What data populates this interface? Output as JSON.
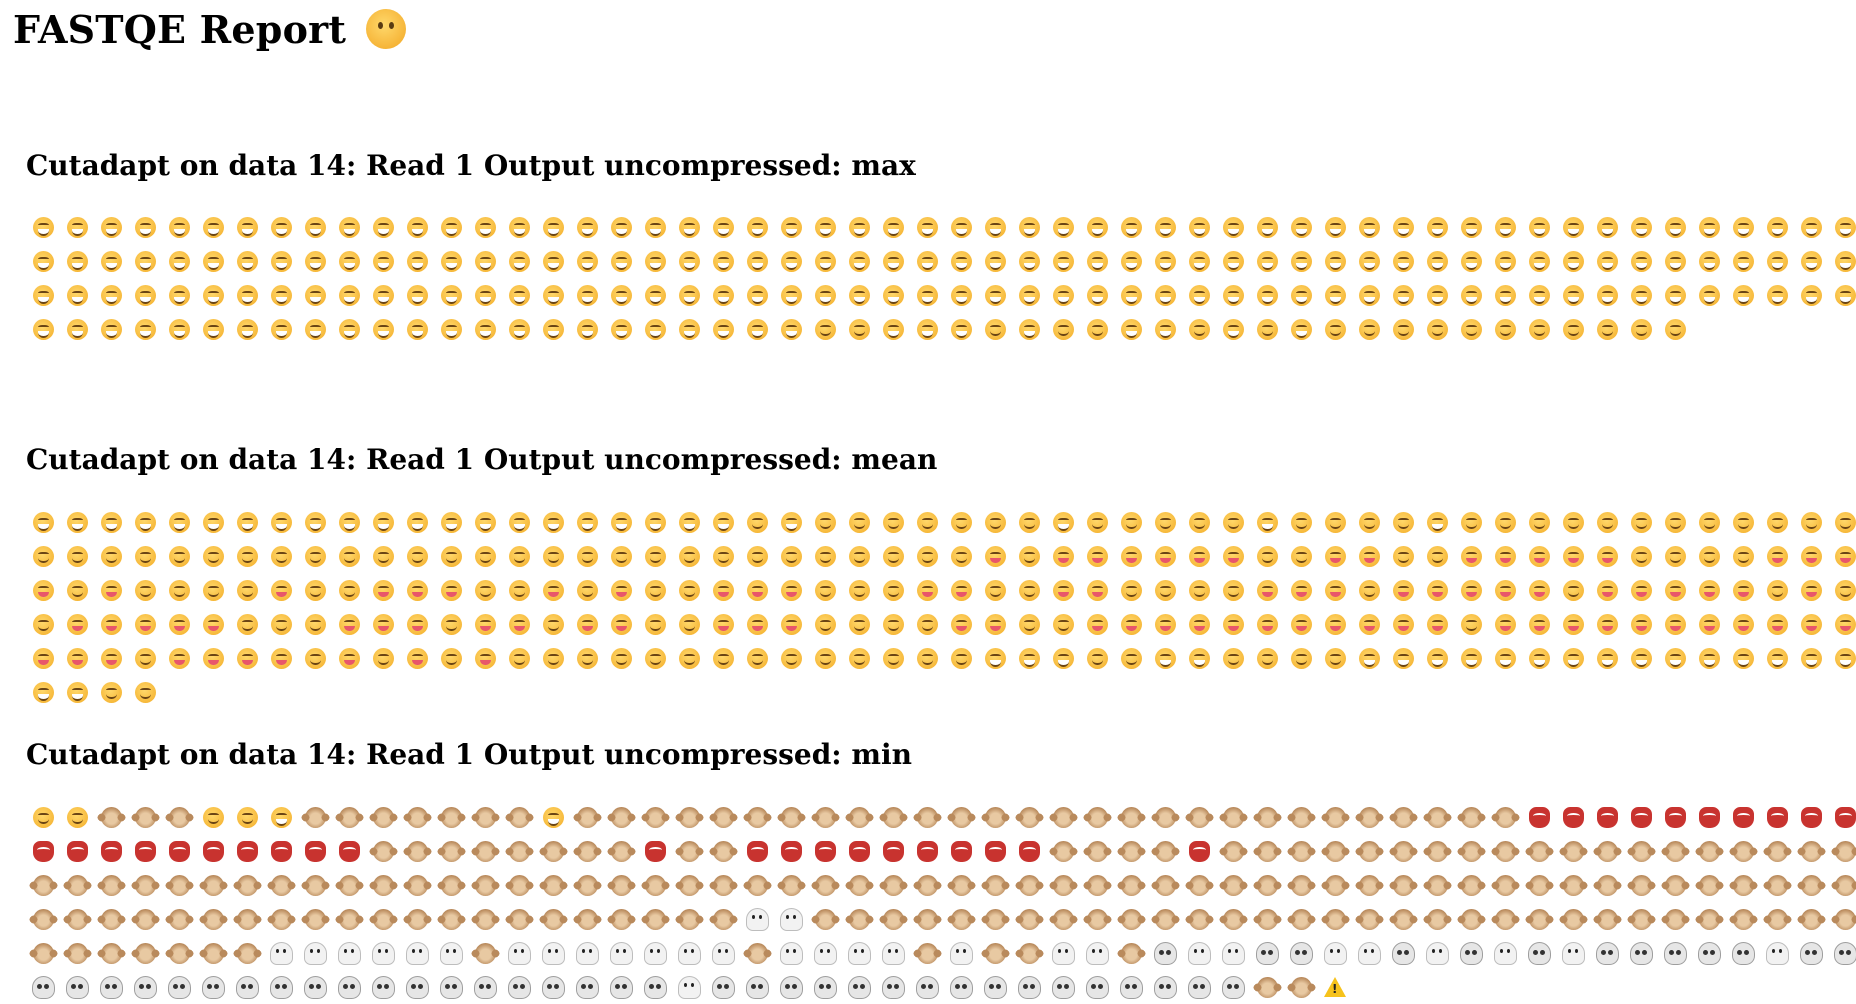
{
  "page": {
    "title": "FASTQE Report",
    "title_icon": "thinking-face-icon"
  },
  "sections": [
    {
      "heading": "Cutadapt on data 14: Read 1 Output uncompressed: max",
      "emojis": "GGGGGGGGGGGGGGGGGGGGGGGGGGGGGGGGGGGGGGGGGGGGGGGGGGGGGGGGGGGGGGGGGGGGGGGGGGGGGGGGGGGGGGGGGGGGGGGGGGGGGGGGGGGGGGGGGGGGGGGGGGGGGGGGGGGGGGGGGGGGGGGGGGGGGGGGGGGGGGGGGGGGGGGGGGGGGGGGGGGGGGGGGWWGGGWGWWGGWGWGWWWWWWWWWWW"
    },
    {
      "heading": "Cutadapt on data 14: Read 1 Output uncompressed: mean",
      "emojis": "GGGGGGGGGGGGGGGGGGGGGWGWWWWWWWGWWWWWGWWWWGWWWWWWWWWWWWWWWWWWWWWWWWWWWWWWWWWWWWWWWWTWTTTTTTWWTTWWTTTTTWWWWTTTTWTWWWWTWWTTTWWTWTWWTTTWWWTTWWTTWWWWTTTWTTTTTWTTTTTWTWWTTTTTWWWTTTWTTWTTWWTTTWWWWTTWWTTTTTTTTTTTWTTTTTTTTTTTTTTWTTTTWTWTWTWWWWWWWWWWWWWWGGGWWGGWWWWGGGGGGGGGGGGGGGGGWW"
    },
    {
      "heading": "Cutadapt on data 14: Read 1 Output uncompressed: min",
      "emojis": "WWMMMWWGMMMMMMMGMMMMMMMMMMMMMMMMMMMMMMMMMMMMRRRRRRRRRRRRRRRRRRRRMMMMMMMMRMMRRRRRRRRRMMMMRMMMMMMMMMMMMMMMMMMMMMMMMMMMMMMMMMMMMMMMMMMMMMMMMMMMMMMMMMMMMMMMMMMMMMMMMMMMMMMMMMMMMMMMMMMMMMMHHMMMMMMMMMMMMMMMMMMMMMMMMMMMMMMMMMMMMMMHHHHHHMHHHHHHHMHHHHMHMMHHMSHHSSHHSHSHSHSSSSSHSSSSSSSSSSSSSSSSSSSSSHSSSSSSSSSSSSSSSSMMX"
    }
  ],
  "legend": {
    "G": "grinning-face-icon",
    "W": "winking-face-icon",
    "T": "face-with-tongue-icon",
    "M": "monkey-icon",
    "R": "goblin-icon",
    "H": "ghost-icon",
    "S": "skull-icon",
    "X": "warning-icon"
  }
}
